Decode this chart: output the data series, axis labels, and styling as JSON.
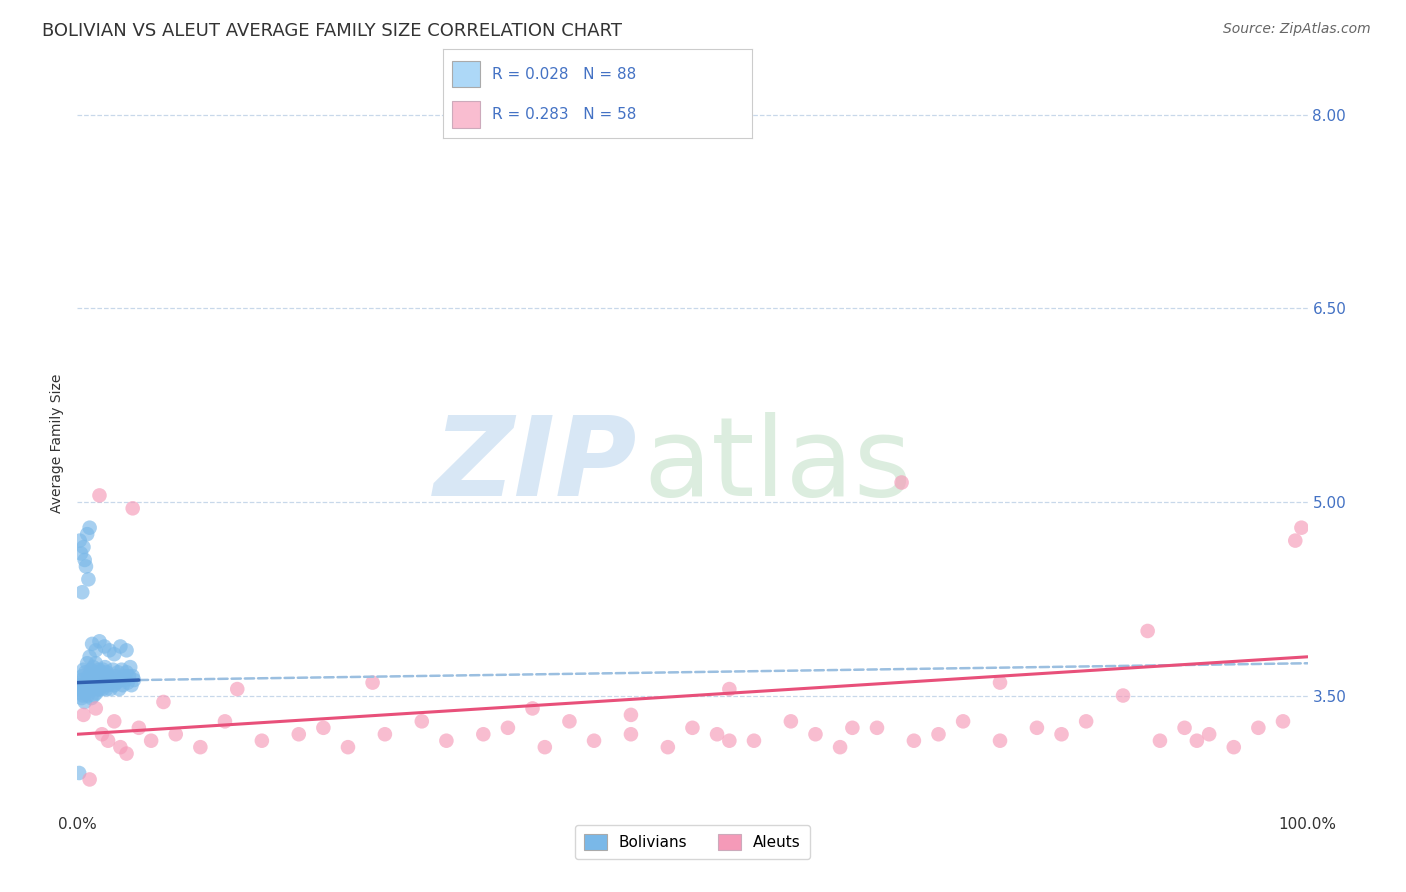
{
  "title": "BOLIVIAN VS ALEUT AVERAGE FAMILY SIZE CORRELATION CHART",
  "source": "Source: ZipAtlas.com",
  "ylabel": "Average Family Size",
  "legend_entries": [
    {
      "label": "R = 0.028   N = 88",
      "color": "#add8f7"
    },
    {
      "label": "R = 0.283   N = 58",
      "color": "#f9bdd0"
    }
  ],
  "bolivians_color": "#7ab8e8",
  "aleuts_color": "#f59ab8",
  "trend_bolivians_color": "#3060b0",
  "trend_aleuts_color": "#e8507a",
  "trend_dashed_color": "#9bbfe0",
  "background_color": "#ffffff",
  "grid_color": "#c8d8ea",
  "xlim": [
    0,
    100
  ],
  "ylim": [
    2.6,
    8.3
  ],
  "yticks": [
    3.5,
    5.0,
    6.5,
    8.0
  ],
  "title_fontsize": 13,
  "axis_label_fontsize": 10,
  "tick_fontsize": 11,
  "source_fontsize": 10,
  "bolivians_x": [
    0.1,
    0.15,
    0.2,
    0.25,
    0.3,
    0.35,
    0.4,
    0.45,
    0.5,
    0.55,
    0.6,
    0.65,
    0.7,
    0.75,
    0.8,
    0.85,
    0.9,
    0.95,
    1.0,
    1.05,
    1.1,
    1.15,
    1.2,
    1.25,
    1.3,
    1.35,
    1.4,
    1.45,
    1.5,
    1.55,
    1.6,
    1.65,
    1.7,
    1.75,
    1.8,
    1.85,
    1.9,
    1.95,
    2.0,
    2.05,
    2.1,
    2.15,
    2.2,
    2.25,
    2.3,
    2.35,
    2.4,
    2.45,
    2.5,
    2.6,
    2.7,
    2.8,
    2.9,
    3.0,
    3.1,
    3.2,
    3.3,
    3.4,
    3.5,
    3.6,
    3.7,
    3.8,
    3.9,
    4.0,
    4.1,
    4.2,
    4.3,
    4.4,
    4.5,
    4.6,
    0.2,
    0.3,
    0.4,
    0.5,
    0.6,
    0.7,
    0.8,
    0.9,
    1.0,
    1.2,
    1.5,
    1.8,
    2.2,
    2.6,
    3.0,
    3.5,
    4.0,
    0.15
  ],
  "bolivians_y": [
    3.55,
    3.6,
    3.58,
    3.52,
    3.62,
    3.48,
    3.65,
    3.5,
    3.7,
    3.55,
    3.45,
    3.68,
    3.52,
    3.6,
    3.75,
    3.5,
    3.65,
    3.55,
    3.8,
    3.58,
    3.7,
    3.48,
    3.62,
    3.55,
    3.72,
    3.5,
    3.65,
    3.58,
    3.75,
    3.52,
    3.68,
    3.55,
    3.6,
    3.7,
    3.55,
    3.65,
    3.58,
    3.62,
    3.68,
    3.55,
    3.7,
    3.58,
    3.65,
    3.72,
    3.6,
    3.55,
    3.68,
    3.62,
    3.58,
    3.65,
    3.55,
    3.62,
    3.7,
    3.58,
    3.65,
    3.6,
    3.68,
    3.55,
    3.62,
    3.7,
    3.58,
    3.65,
    3.62,
    3.68,
    3.6,
    3.65,
    3.72,
    3.58,
    3.65,
    3.62,
    4.7,
    4.6,
    4.3,
    4.65,
    4.55,
    4.5,
    4.75,
    4.4,
    4.8,
    3.9,
    3.85,
    3.92,
    3.88,
    3.85,
    3.82,
    3.88,
    3.85,
    2.9
  ],
  "aleuts_x": [
    0.5,
    1.0,
    1.5,
    2.0,
    2.5,
    3.0,
    3.5,
    4.0,
    5.0,
    6.0,
    8.0,
    10.0,
    12.0,
    15.0,
    18.0,
    20.0,
    22.0,
    25.0,
    28.0,
    30.0,
    33.0,
    35.0,
    38.0,
    40.0,
    42.0,
    45.0,
    48.0,
    50.0,
    52.0,
    55.0,
    58.0,
    60.0,
    62.0,
    65.0,
    68.0,
    70.0,
    72.0,
    75.0,
    78.0,
    80.0,
    82.0,
    85.0,
    88.0,
    90.0,
    92.0,
    94.0,
    96.0,
    98.0,
    99.0,
    99.5,
    1.8,
    4.5,
    7.0,
    13.0,
    24.0,
    37.0,
    53.0,
    67.0
  ],
  "aleuts_y": [
    3.35,
    2.85,
    3.4,
    3.2,
    3.15,
    3.3,
    3.1,
    3.05,
    3.25,
    3.15,
    3.2,
    3.1,
    3.3,
    3.15,
    3.2,
    3.25,
    3.1,
    3.2,
    3.3,
    3.15,
    3.2,
    3.25,
    3.1,
    3.3,
    3.15,
    3.2,
    3.1,
    3.25,
    3.2,
    3.15,
    3.3,
    3.2,
    3.1,
    3.25,
    3.15,
    3.2,
    3.3,
    3.15,
    3.25,
    3.2,
    3.3,
    3.5,
    3.15,
    3.25,
    3.2,
    3.1,
    3.25,
    3.3,
    4.7,
    4.8,
    5.05,
    4.95,
    3.45,
    3.55,
    3.6,
    3.4,
    3.55,
    5.15
  ],
  "aleuts_extra_x": [
    91.0,
    87.0,
    75.0,
    63.0,
    53.0,
    45.0
  ],
  "aleuts_extra_y": [
    3.15,
    4.0,
    3.6,
    3.25,
    3.15,
    3.35
  ],
  "bolivian_trend_x0": 0.0,
  "bolivian_trend_x1": 5.0,
  "bolivian_trend_y0": 3.6,
  "bolivian_trend_y1": 3.62,
  "bolivian_dashed_x0": 5.0,
  "bolivian_dashed_x1": 100.0,
  "bolivian_dashed_y0": 3.62,
  "bolivian_dashed_y1": 3.75,
  "aleut_trend_x0": 0.0,
  "aleut_trend_x1": 100.0,
  "aleut_trend_y0": 3.2,
  "aleut_trend_y1": 3.8
}
